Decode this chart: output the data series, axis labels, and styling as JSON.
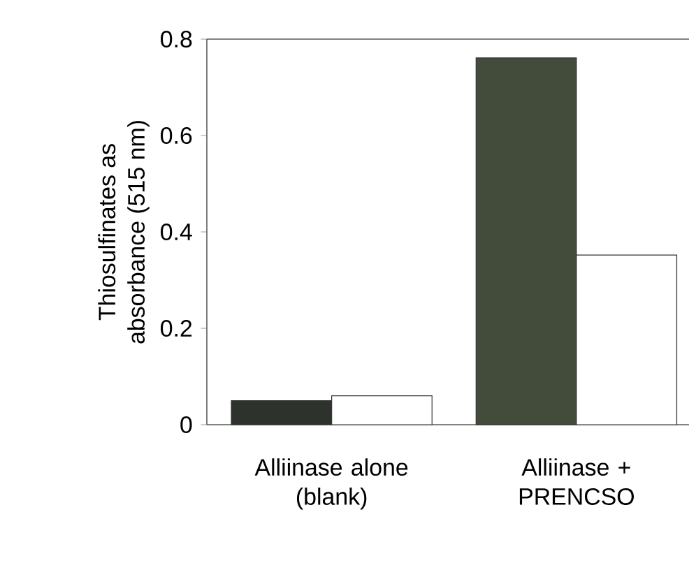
{
  "chart_data": {
    "type": "bar",
    "ylabel": "Thiosulfinates as absorbance (515 nm)",
    "categories": [
      "Alliinase alone (blank)",
      "Alliinase + PRENCSO"
    ],
    "series": [
      {
        "colors": [
          "#2d332c",
          "#434c3a"
        ],
        "values": [
          0.05,
          0.761
        ]
      },
      {
        "color": "#ffffff",
        "values": [
          0.06,
          0.352
        ]
      }
    ],
    "ylim": [
      0,
      0.8
    ],
    "yticks": [
      0,
      0.2,
      0.4,
      0.6,
      0.8
    ]
  }
}
